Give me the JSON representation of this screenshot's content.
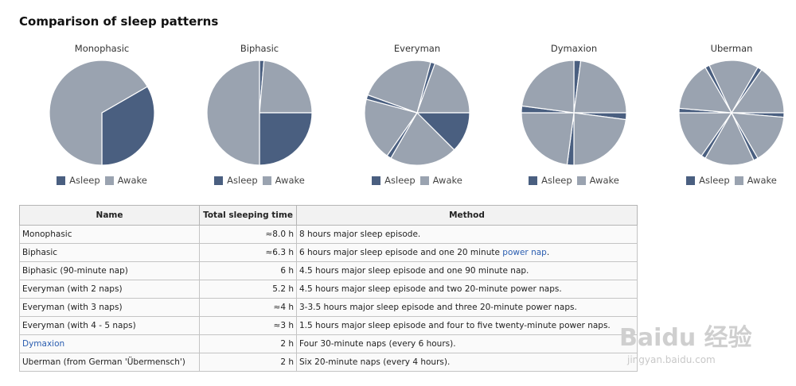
{
  "heading": "Comparison of sleep patterns",
  "colors": {
    "asleep": "#4a5f80",
    "awake": "#9aa3b0"
  },
  "legend": {
    "asleep": "Asleep",
    "awake": "Awake"
  },
  "chart_data": [
    {
      "type": "pie",
      "title": "Monophasic",
      "slices": [
        {
          "label": "Asleep",
          "start_h": 4,
          "hours": 8
        },
        {
          "label": "Awake",
          "start_h": 12,
          "hours": 16
        }
      ]
    },
    {
      "type": "pie",
      "title": "Biphasic",
      "slices": [
        {
          "label": "Asleep",
          "start_h": 0,
          "hours": 0.33
        },
        {
          "label": "Awake",
          "start_h": 0.33,
          "hours": 5.67
        },
        {
          "label": "Asleep",
          "start_h": 6,
          "hours": 6
        },
        {
          "label": "Awake",
          "start_h": 12,
          "hours": 12
        }
      ]
    },
    {
      "type": "pie",
      "title": "Everyman",
      "slices": [
        {
          "label": "Asleep",
          "start_h": 1,
          "hours": 0.33
        },
        {
          "label": "Awake",
          "start_h": 1.33,
          "hours": 4.67
        },
        {
          "label": "Asleep",
          "start_h": 6,
          "hours": 3
        },
        {
          "label": "Awake",
          "start_h": 9,
          "hours": 5
        },
        {
          "label": "Asleep",
          "start_h": 14,
          "hours": 0.33
        },
        {
          "label": "Awake",
          "start_h": 14.33,
          "hours": 4.67
        },
        {
          "label": "Asleep",
          "start_h": 19,
          "hours": 0.33
        },
        {
          "label": "Awake",
          "start_h": 19.33,
          "hours": 5.67
        }
      ]
    },
    {
      "type": "pie",
      "title": "Dymaxion",
      "slices": [
        {
          "label": "Asleep",
          "start_h": 0,
          "hours": 0.5
        },
        {
          "label": "Awake",
          "start_h": 0.5,
          "hours": 5.5
        },
        {
          "label": "Asleep",
          "start_h": 6,
          "hours": 0.5
        },
        {
          "label": "Awake",
          "start_h": 6.5,
          "hours": 5.5
        },
        {
          "label": "Asleep",
          "start_h": 12,
          "hours": 0.5
        },
        {
          "label": "Awake",
          "start_h": 12.5,
          "hours": 5.5
        },
        {
          "label": "Asleep",
          "start_h": 18,
          "hours": 0.5
        },
        {
          "label": "Awake",
          "start_h": 18.5,
          "hours": 5.5
        }
      ]
    },
    {
      "type": "pie",
      "title": "Uberman",
      "slices": [
        {
          "label": "Asleep",
          "start_h": 2,
          "hours": 0.33
        },
        {
          "label": "Awake",
          "start_h": 2.33,
          "hours": 3.67
        },
        {
          "label": "Asleep",
          "start_h": 6,
          "hours": 0.33
        },
        {
          "label": "Awake",
          "start_h": 6.33,
          "hours": 3.67
        },
        {
          "label": "Asleep",
          "start_h": 10,
          "hours": 0.33
        },
        {
          "label": "Awake",
          "start_h": 10.33,
          "hours": 3.67
        },
        {
          "label": "Asleep",
          "start_h": 14,
          "hours": 0.33
        },
        {
          "label": "Awake",
          "start_h": 14.33,
          "hours": 3.67
        },
        {
          "label": "Asleep",
          "start_h": 18,
          "hours": 0.33
        },
        {
          "label": "Awake",
          "start_h": 18.33,
          "hours": 3.67
        },
        {
          "label": "Asleep",
          "start_h": 22,
          "hours": 0.33
        },
        {
          "label": "Awake",
          "start_h": 22.33,
          "hours": 3.67
        }
      ]
    }
  ],
  "table": {
    "headers": [
      "Name",
      "Total sleeping time",
      "Method"
    ],
    "rows": [
      {
        "name": "Monophasic",
        "time": "≈8.0 h",
        "method": "8 hours major sleep episode.",
        "method_link": "",
        "method_tail": ""
      },
      {
        "name": "Biphasic",
        "time": "≈6.3 h",
        "method": "6 hours major sleep episode and one 20 minute ",
        "method_link": "power nap",
        "method_tail": "."
      },
      {
        "name": "Biphasic (90-minute nap)",
        "time": "6 h",
        "method": "4.5 hours major sleep episode and one 90 minute nap.",
        "method_link": "",
        "method_tail": ""
      },
      {
        "name": "Everyman (with 2 naps)",
        "time": "5.2 h",
        "method": "4.5 hours major sleep episode and two 20-minute power naps.",
        "method_link": "",
        "method_tail": ""
      },
      {
        "name": "Everyman (with 3 naps)",
        "time": "≈4 h",
        "method": "3-3.5 hours major sleep episode and three 20-minute power naps.",
        "method_link": "",
        "method_tail": ""
      },
      {
        "name": "Everyman (with 4 - 5 naps)",
        "time": "≈3 h",
        "method": "1.5 hours major sleep episode and four to five twenty-minute power naps.",
        "method_link": "",
        "method_tail": ""
      },
      {
        "name": "Dymaxion",
        "time": "2 h",
        "method": "Four 30-minute naps (every 6 hours).",
        "method_link": "",
        "method_tail": ""
      },
      {
        "name": "Uberman (from German 'Übermensch')",
        "time": "2 h",
        "method": "Six 20-minute naps (every 4 hours).",
        "method_link": "",
        "method_tail": ""
      }
    ]
  },
  "watermark": {
    "main": "Baidu 经验",
    "sub": "jingyan.baidu.com"
  }
}
